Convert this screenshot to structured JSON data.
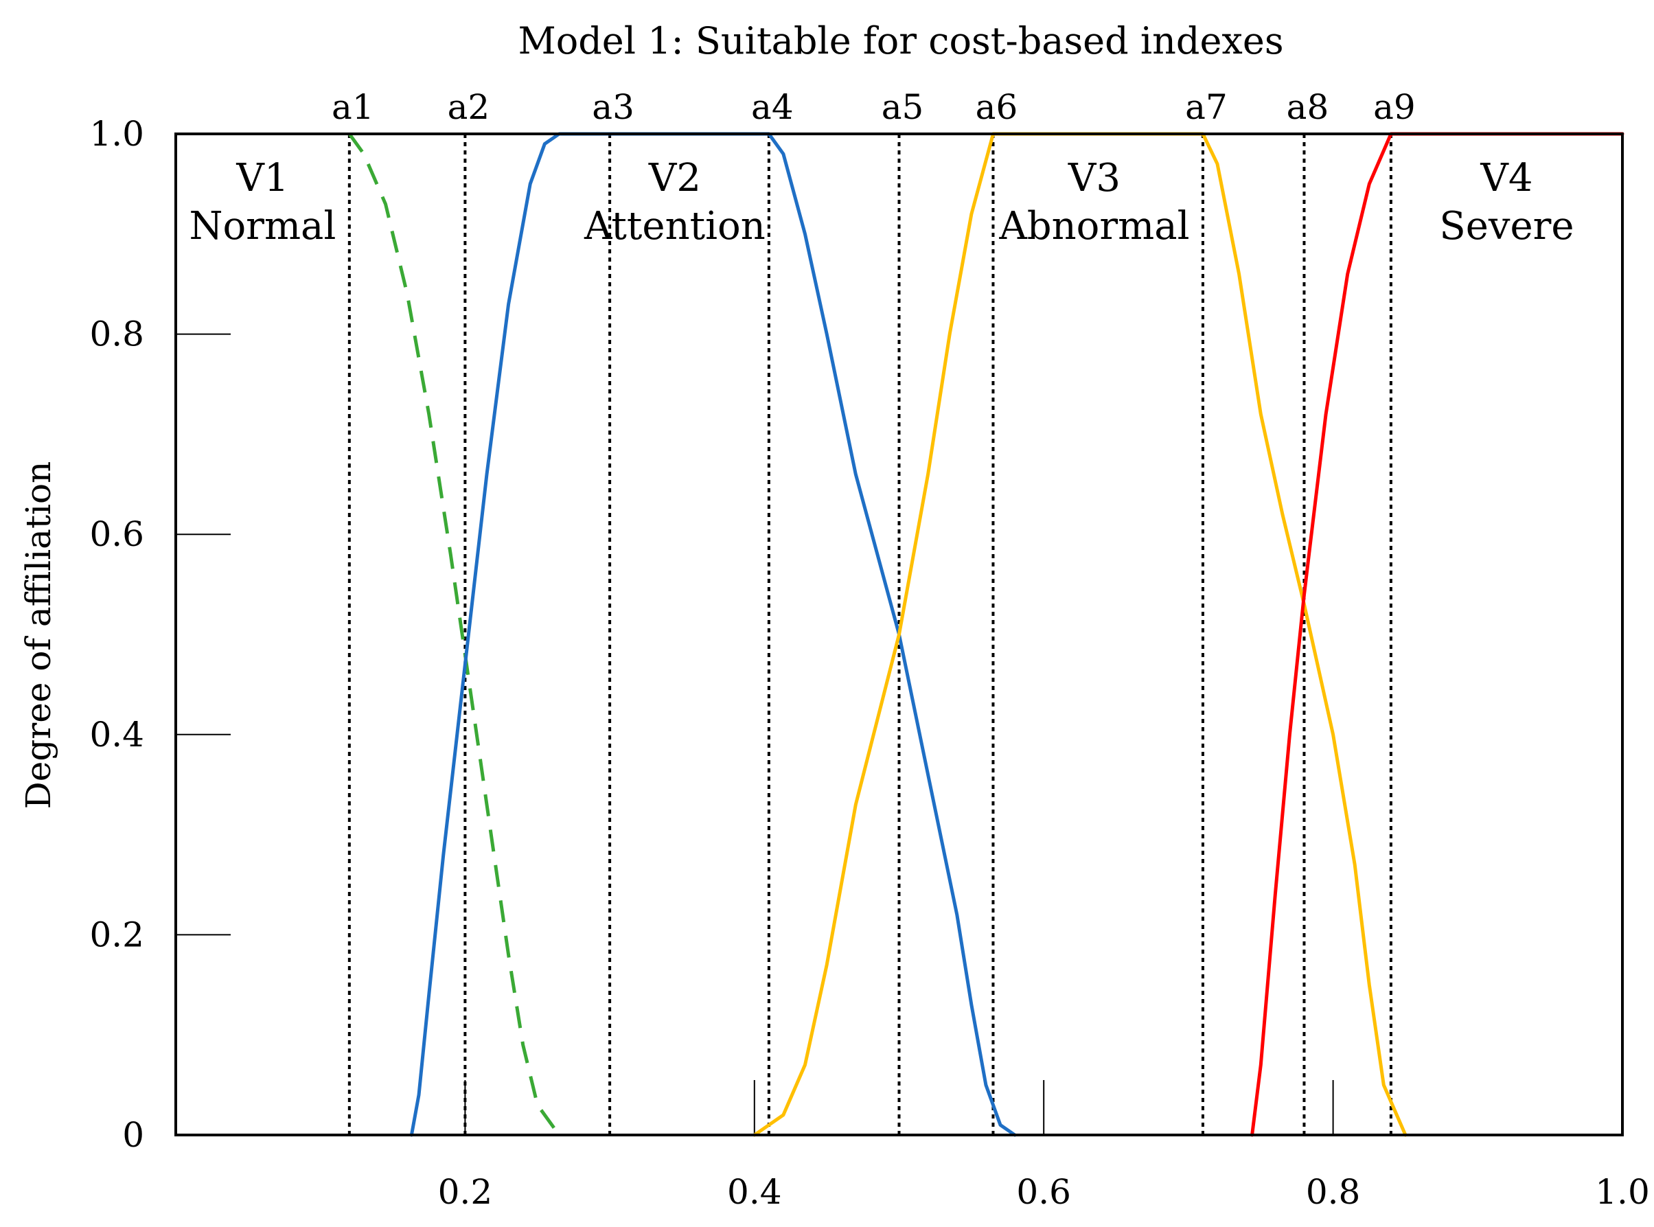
{
  "chart_data": {
    "type": "line",
    "title": "Model 1: Suitable for cost-based indexes",
    "xlabel": "",
    "ylabel": "Degree of affiliation",
    "xlim": [
      0,
      1.0
    ],
    "ylim": [
      0,
      1.0
    ],
    "x_ticks": [
      {
        "value": 0.2,
        "label": "0.2"
      },
      {
        "value": 0.4,
        "label": "0.4"
      },
      {
        "value": 0.6,
        "label": "0.6"
      },
      {
        "value": 0.8,
        "label": "0.8"
      },
      {
        "value": 1.0,
        "label": "1.0"
      }
    ],
    "y_ticks": [
      {
        "value": 0,
        "label": "0"
      },
      {
        "value": 0.2,
        "label": "0.2"
      },
      {
        "value": 0.4,
        "label": "0.4"
      },
      {
        "value": 0.6,
        "label": "0.6"
      },
      {
        "value": 0.8,
        "label": "0.8"
      },
      {
        "value": 1.0,
        "label": "1.0"
      }
    ],
    "thresholds": [
      {
        "name": "a1",
        "x": 0.12
      },
      {
        "name": "a2",
        "x": 0.2
      },
      {
        "name": "a3",
        "x": 0.3
      },
      {
        "name": "a4",
        "x": 0.41
      },
      {
        "name": "a5",
        "x": 0.5
      },
      {
        "name": "a6",
        "x": 0.565
      },
      {
        "name": "a7",
        "x": 0.71
      },
      {
        "name": "a8",
        "x": 0.78
      },
      {
        "name": "a9",
        "x": 0.84
      }
    ],
    "regions": [
      {
        "code": "V1",
        "name": "Normal",
        "x": 0.06
      },
      {
        "code": "V2",
        "name": "Attention",
        "x": 0.345
      },
      {
        "code": "V3",
        "name": "Abnormal",
        "x": 0.635
      },
      {
        "code": "V4",
        "name": "Severe",
        "x": 0.92
      }
    ],
    "series": [
      {
        "name": "V1 Normal",
        "color": "#3aa935",
        "style": "dashed",
        "points": [
          [
            0.12,
            1.0
          ],
          [
            0.13,
            0.98
          ],
          [
            0.145,
            0.93
          ],
          [
            0.16,
            0.84
          ],
          [
            0.175,
            0.72
          ],
          [
            0.19,
            0.58
          ],
          [
            0.2,
            0.48
          ],
          [
            0.21,
            0.38
          ],
          [
            0.22,
            0.28
          ],
          [
            0.23,
            0.18
          ],
          [
            0.24,
            0.09
          ],
          [
            0.25,
            0.03
          ],
          [
            0.265,
            0.0
          ]
        ]
      },
      {
        "name": "V2 Attention",
        "color": "#1f6fc5",
        "style": "solid",
        "points": [
          [
            0.163,
            0.0
          ],
          [
            0.168,
            0.04
          ],
          [
            0.175,
            0.14
          ],
          [
            0.185,
            0.28
          ],
          [
            0.2,
            0.47
          ],
          [
            0.215,
            0.66
          ],
          [
            0.23,
            0.83
          ],
          [
            0.245,
            0.95
          ],
          [
            0.255,
            0.99
          ],
          [
            0.265,
            1.0
          ],
          [
            0.41,
            1.0
          ],
          [
            0.42,
            0.98
          ],
          [
            0.435,
            0.9
          ],
          [
            0.45,
            0.8
          ],
          [
            0.47,
            0.66
          ],
          [
            0.5,
            0.5
          ],
          [
            0.52,
            0.36
          ],
          [
            0.54,
            0.22
          ],
          [
            0.55,
            0.13
          ],
          [
            0.56,
            0.05
          ],
          [
            0.57,
            0.01
          ],
          [
            0.58,
            0.0
          ]
        ]
      },
      {
        "name": "V3 Abnormal",
        "color": "#ffbf00",
        "style": "solid",
        "points": [
          [
            0.4,
            0.0
          ],
          [
            0.42,
            0.02
          ],
          [
            0.435,
            0.07
          ],
          [
            0.45,
            0.17
          ],
          [
            0.47,
            0.33
          ],
          [
            0.5,
            0.5
          ],
          [
            0.52,
            0.66
          ],
          [
            0.535,
            0.8
          ],
          [
            0.55,
            0.92
          ],
          [
            0.565,
            1.0
          ],
          [
            0.71,
            1.0
          ],
          [
            0.72,
            0.97
          ],
          [
            0.735,
            0.86
          ],
          [
            0.75,
            0.72
          ],
          [
            0.765,
            0.62
          ],
          [
            0.78,
            0.53
          ],
          [
            0.8,
            0.4
          ],
          [
            0.815,
            0.27
          ],
          [
            0.825,
            0.15
          ],
          [
            0.835,
            0.05
          ],
          [
            0.85,
            0.0
          ]
        ]
      },
      {
        "name": "V4 Severe",
        "color": "#ff0000",
        "style": "solid",
        "points": [
          [
            0.744,
            0.0
          ],
          [
            0.75,
            0.07
          ],
          [
            0.76,
            0.24
          ],
          [
            0.77,
            0.4
          ],
          [
            0.78,
            0.54
          ],
          [
            0.795,
            0.72
          ],
          [
            0.81,
            0.86
          ],
          [
            0.825,
            0.95
          ],
          [
            0.84,
            1.0
          ],
          [
            1.0,
            1.0
          ]
        ]
      }
    ]
  }
}
